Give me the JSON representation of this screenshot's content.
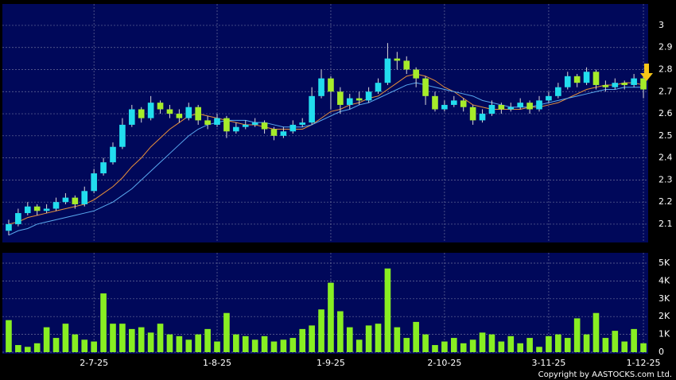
{
  "chart_data": [
    {
      "type": "candlestick",
      "ohlc": [
        [
          2.07,
          2.12,
          2.05,
          2.1
        ],
        [
          2.1,
          2.17,
          2.09,
          2.15
        ],
        [
          2.15,
          2.2,
          2.14,
          2.18
        ],
        [
          2.18,
          2.19,
          2.14,
          2.16
        ],
        [
          2.16,
          2.19,
          2.15,
          2.17
        ],
        [
          2.17,
          2.22,
          2.16,
          2.2
        ],
        [
          2.2,
          2.24,
          2.19,
          2.22
        ],
        [
          2.22,
          2.23,
          2.17,
          2.19
        ],
        [
          2.19,
          2.27,
          2.18,
          2.25
        ],
        [
          2.25,
          2.35,
          2.24,
          2.33
        ],
        [
          2.33,
          2.4,
          2.32,
          2.38
        ],
        [
          2.38,
          2.47,
          2.37,
          2.45
        ],
        [
          2.45,
          2.58,
          2.44,
          2.55
        ],
        [
          2.55,
          2.64,
          2.54,
          2.62
        ],
        [
          2.62,
          2.63,
          2.56,
          2.58
        ],
        [
          2.58,
          2.68,
          2.57,
          2.65
        ],
        [
          2.65,
          2.66,
          2.6,
          2.62
        ],
        [
          2.62,
          2.64,
          2.58,
          2.6
        ],
        [
          2.6,
          2.62,
          2.56,
          2.58
        ],
        [
          2.58,
          2.65,
          2.57,
          2.63
        ],
        [
          2.63,
          2.64,
          2.55,
          2.57
        ],
        [
          2.57,
          2.59,
          2.53,
          2.55
        ],
        [
          2.55,
          2.6,
          2.54,
          2.58
        ],
        [
          2.58,
          2.59,
          2.49,
          2.52
        ],
        [
          2.52,
          2.56,
          2.51,
          2.54
        ],
        [
          2.54,
          2.57,
          2.53,
          2.55
        ],
        [
          2.55,
          2.58,
          2.54,
          2.56
        ],
        [
          2.56,
          2.57,
          2.51,
          2.53
        ],
        [
          2.53,
          2.54,
          2.48,
          2.5
        ],
        [
          2.5,
          2.54,
          2.49,
          2.52
        ],
        [
          2.52,
          2.57,
          2.51,
          2.55
        ],
        [
          2.55,
          2.58,
          2.54,
          2.56
        ],
        [
          2.56,
          2.72,
          2.55,
          2.68
        ],
        [
          2.68,
          2.8,
          2.67,
          2.76
        ],
        [
          2.76,
          2.77,
          2.62,
          2.7
        ],
        [
          2.7,
          2.72,
          2.6,
          2.64
        ],
        [
          2.64,
          2.69,
          2.62,
          2.67
        ],
        [
          2.67,
          2.7,
          2.64,
          2.66
        ],
        [
          2.66,
          2.72,
          2.65,
          2.7
        ],
        [
          2.7,
          2.76,
          2.69,
          2.74
        ],
        [
          2.74,
          2.92,
          2.73,
          2.85
        ],
        [
          2.85,
          2.88,
          2.8,
          2.84
        ],
        [
          2.84,
          2.86,
          2.78,
          2.8
        ],
        [
          2.8,
          2.81,
          2.72,
          2.76
        ],
        [
          2.76,
          2.77,
          2.64,
          2.68
        ],
        [
          2.68,
          2.7,
          2.61,
          2.62
        ],
        [
          2.62,
          2.66,
          2.61,
          2.64
        ],
        [
          2.64,
          2.68,
          2.63,
          2.66
        ],
        [
          2.66,
          2.67,
          2.61,
          2.63
        ],
        [
          2.63,
          2.64,
          2.55,
          2.57
        ],
        [
          2.57,
          2.62,
          2.56,
          2.6
        ],
        [
          2.6,
          2.66,
          2.59,
          2.64
        ],
        [
          2.64,
          2.65,
          2.6,
          2.62
        ],
        [
          2.62,
          2.65,
          2.61,
          2.63
        ],
        [
          2.63,
          2.67,
          2.62,
          2.65
        ],
        [
          2.65,
          2.66,
          2.6,
          2.62
        ],
        [
          2.62,
          2.68,
          2.61,
          2.66
        ],
        [
          2.66,
          2.7,
          2.65,
          2.68
        ],
        [
          2.68,
          2.74,
          2.67,
          2.72
        ],
        [
          2.72,
          2.79,
          2.71,
          2.77
        ],
        [
          2.77,
          2.78,
          2.72,
          2.74
        ],
        [
          2.74,
          2.81,
          2.73,
          2.79
        ],
        [
          2.79,
          2.8,
          2.71,
          2.73
        ],
        [
          2.73,
          2.75,
          2.7,
          2.72
        ],
        [
          2.72,
          2.76,
          2.71,
          2.74
        ],
        [
          2.74,
          2.75,
          2.71,
          2.73
        ],
        [
          2.73,
          2.78,
          2.72,
          2.76
        ],
        [
          2.76,
          2.77,
          2.67,
          2.71
        ]
      ],
      "up_color": "#22ddee",
      "down_color": "#a6ec2a",
      "series": [
        {
          "color": "#e8913a",
          "values": [
            2.1,
            2.11,
            2.13,
            2.14,
            2.15,
            2.16,
            2.17,
            2.18,
            2.19,
            2.21,
            2.24,
            2.27,
            2.31,
            2.36,
            2.4,
            2.45,
            2.49,
            2.53,
            2.56,
            2.59,
            2.6,
            2.59,
            2.58,
            2.57,
            2.56,
            2.55,
            2.55,
            2.54,
            2.53,
            2.53,
            2.53,
            2.53,
            2.55,
            2.58,
            2.61,
            2.62,
            2.64,
            2.65,
            2.67,
            2.68,
            2.71,
            2.74,
            2.77,
            2.78,
            2.77,
            2.75,
            2.72,
            2.7,
            2.67,
            2.64,
            2.63,
            2.62,
            2.62,
            2.62,
            2.62,
            2.63,
            2.63,
            2.64,
            2.65,
            2.67,
            2.69,
            2.71,
            2.72,
            2.73,
            2.73,
            2.74,
            2.74,
            2.73
          ]
        },
        {
          "color": "#5aaaf0",
          "values": [
            2.05,
            2.07,
            2.08,
            2.1,
            2.11,
            2.12,
            2.13,
            2.14,
            2.15,
            2.16,
            2.18,
            2.2,
            2.23,
            2.26,
            2.3,
            2.34,
            2.38,
            2.42,
            2.46,
            2.5,
            2.53,
            2.55,
            2.56,
            2.57,
            2.57,
            2.57,
            2.56,
            2.56,
            2.55,
            2.54,
            2.54,
            2.54,
            2.55,
            2.57,
            2.59,
            2.61,
            2.62,
            2.64,
            2.65,
            2.67,
            2.69,
            2.71,
            2.73,
            2.74,
            2.73,
            2.72,
            2.71,
            2.7,
            2.69,
            2.68,
            2.66,
            2.65,
            2.64,
            2.63,
            2.63,
            2.63,
            2.64,
            2.65,
            2.66,
            2.67,
            2.68,
            2.69,
            2.7,
            2.71,
            2.71,
            2.72,
            2.72,
            2.72
          ]
        }
      ],
      "ylim": [
        2.017,
        3.097
      ],
      "yticks": [
        2.1,
        2.2,
        2.3,
        2.4,
        2.5,
        2.6,
        2.7,
        2.8,
        2.9,
        3
      ],
      "grid": true
    },
    {
      "type": "bar",
      "color": "#88ee22",
      "categories": [
        null,
        null,
        null,
        null,
        null,
        null,
        null,
        null,
        null,
        "2-7-25",
        null,
        null,
        null,
        null,
        null,
        null,
        null,
        null,
        null,
        null,
        null,
        null,
        "1-8-25",
        null,
        null,
        null,
        null,
        null,
        null,
        null,
        null,
        null,
        null,
        null,
        "1-9-25",
        null,
        null,
        null,
        null,
        null,
        null,
        null,
        null,
        null,
        null,
        null,
        "2-10-25",
        null,
        null,
        null,
        null,
        null,
        null,
        null,
        null,
        null,
        null,
        "3-11-25",
        null,
        null,
        null,
        null,
        null,
        null,
        null,
        null,
        null,
        "1-12-25"
      ],
      "values": [
        1800,
        400,
        300,
        500,
        1400,
        800,
        1600,
        1000,
        700,
        600,
        3300,
        1600,
        1600,
        1300,
        1400,
        1100,
        1600,
        1000,
        900,
        700,
        1000,
        1300,
        600,
        2200,
        1000,
        900,
        700,
        900,
        600,
        700,
        800,
        1300,
        1500,
        2400,
        3900,
        2300,
        1400,
        700,
        1500,
        1600,
        4700,
        1400,
        800,
        1700,
        1000,
        400,
        600,
        800,
        500,
        700,
        1100,
        1000,
        600,
        900,
        500,
        800,
        300,
        900,
        1000,
        800,
        1900,
        1000,
        2200,
        800,
        1200,
        600,
        1300,
        500
      ],
      "ylim": [
        0,
        5580
      ],
      "yticks": [
        0,
        {
          "value": 1000,
          "label": "1K"
        },
        {
          "value": 2000,
          "label": "2K"
        },
        {
          "value": 3000,
          "label": "3K"
        },
        {
          "value": 4000,
          "label": "4K"
        },
        {
          "value": 5000,
          "label": "5K"
        }
      ],
      "grid": true
    }
  ],
  "copyright": "Copyright by AASTOCKS.com Ltd."
}
